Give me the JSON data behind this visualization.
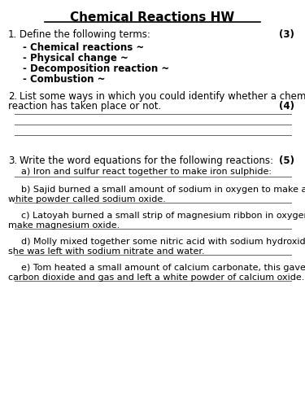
{
  "title": "Chemical Reactions HW",
  "background_color": "#ffffff",
  "text_color": "#000000",
  "q1_number": "1.",
  "q1_text": "Define the following terms:",
  "q1_marks": "(3)",
  "q1_items": [
    "- Chemical reactions ~",
    "- Physical change ~",
    "- Decomposition reaction ~",
    "- Combustion ~"
  ],
  "q2_number": "2.",
  "q2_text_line1": "List some ways in which you could identify whether a chemical",
  "q2_text_line2": "reaction has taken place or not.",
  "q2_marks": "(4)",
  "q2_lines": 3,
  "q3_number": "3.",
  "q3_text": "Write the word equations for the following reactions:",
  "q3_marks": "(5)",
  "q3_items": [
    [
      "a) Iron and sulfur react together to make iron sulphide:"
    ],
    [
      "b) Sajid burned a small amount of sodium in oxygen to make a",
      "white powder called sodium oxide."
    ],
    [
      "c) Latoyah burned a small strip of magnesium ribbon in oxygen  to",
      "make magnesium oxide."
    ],
    [
      "d) Molly mixed together some nitric acid with sodium hydroxide,",
      "she was left with sodium nitrate and water."
    ],
    [
      "e) Tom heated a small amount of calcium carbonate, this gave off",
      "carbon dioxide and gas and left a white powder of calcium oxide."
    ]
  ]
}
